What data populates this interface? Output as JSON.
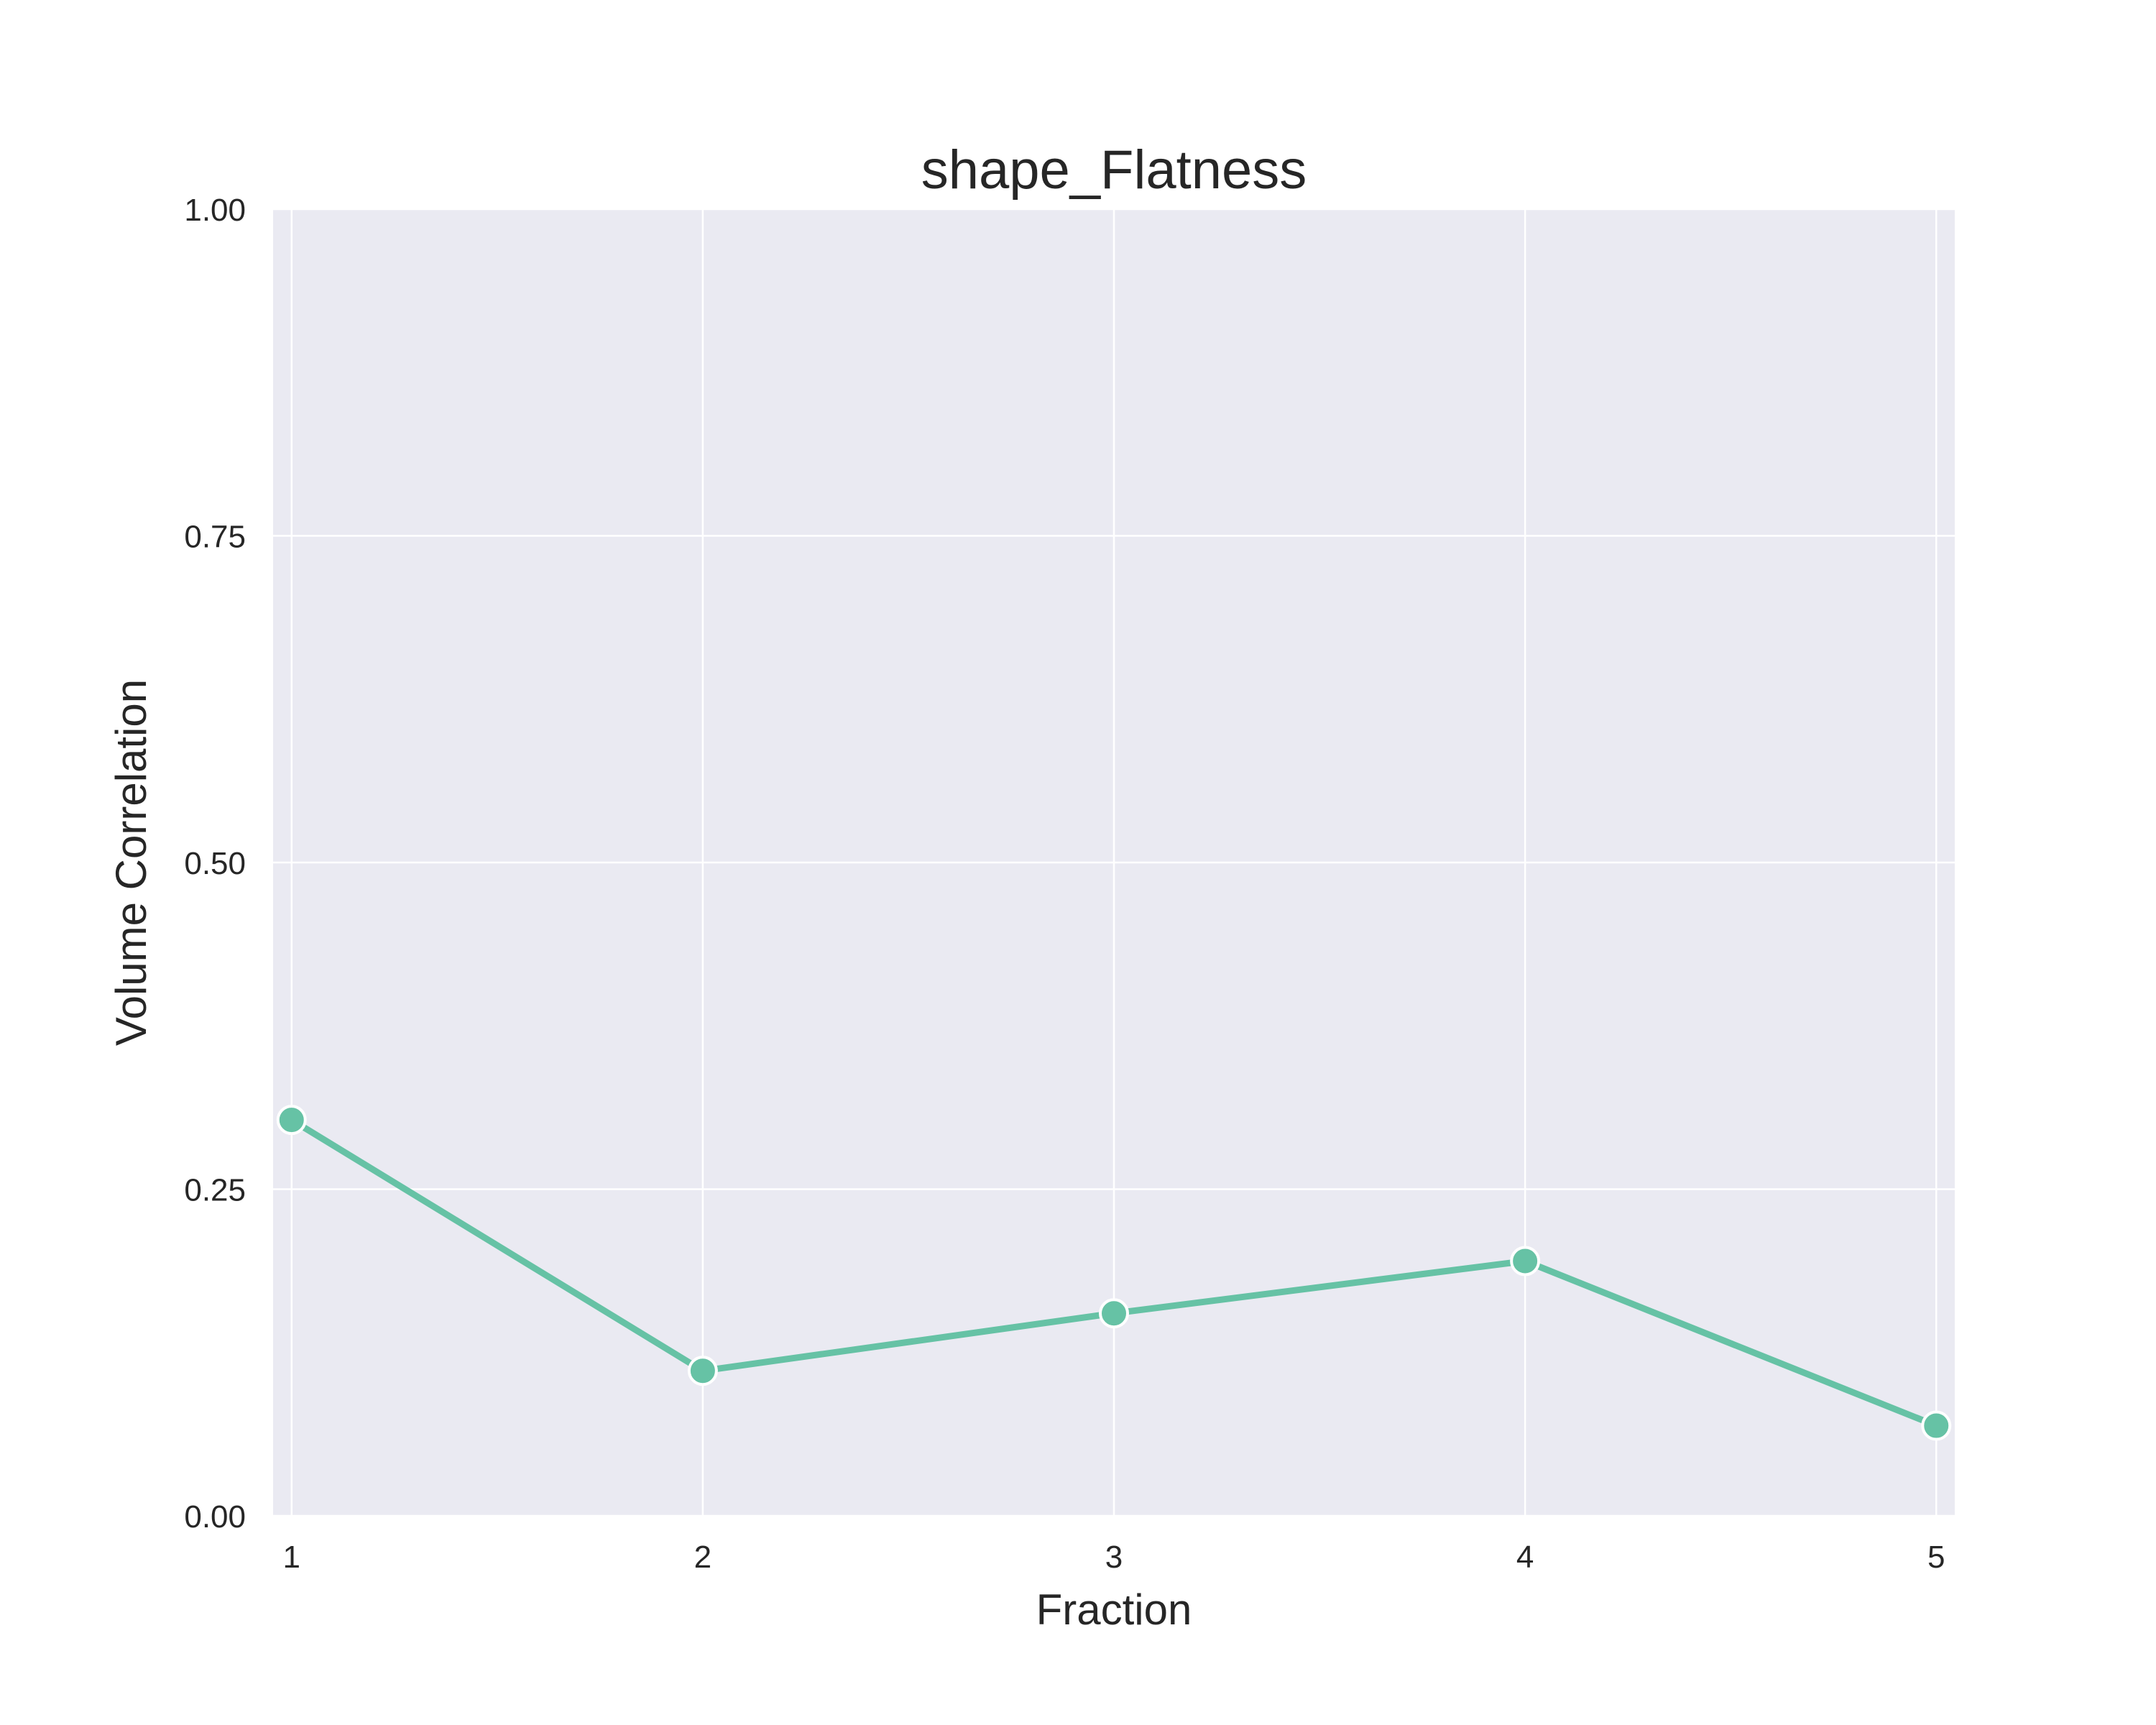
{
  "chart_data": {
    "type": "line",
    "title": "shape_Flatness",
    "xlabel": "Fraction",
    "ylabel": "Volume Correlation",
    "x": [
      1,
      2,
      3,
      4,
      5
    ],
    "x_tick_labels": [
      "1",
      "2",
      "3",
      "4",
      "5"
    ],
    "ylim": [
      0,
      1
    ],
    "y_ticks": [
      0.0,
      0.25,
      0.5,
      0.75,
      1.0
    ],
    "y_tick_labels": [
      "0.00",
      "0.25",
      "0.50",
      "0.75",
      "1.00"
    ],
    "series": [
      {
        "values": [
          0.303,
          0.111,
          0.155,
          0.195,
          0.069
        ]
      }
    ],
    "grid": true,
    "legend": "none",
    "colors": {
      "line": "#66c2a5",
      "plot_background": "#eaeaf2",
      "grid": "#ffffff",
      "text": "#262626"
    }
  }
}
